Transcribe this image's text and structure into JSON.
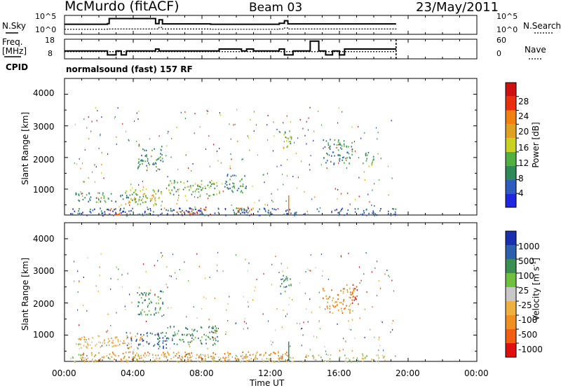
{
  "header": {
    "station": "McMurdo (fitACF)",
    "beam": "Beam 03",
    "date": "23/May/2011"
  },
  "nsky_panel": {
    "left_label": "N.Sky",
    "right_label": "N.Search",
    "left_ticks": [
      "10^5",
      "10^0"
    ],
    "right_ticks": [
      "10^5",
      "10^0"
    ]
  },
  "freq_panel": {
    "left_label_1": "Freq.",
    "left_label_2": "[MHz]",
    "right_label": "Nave",
    "left_ticks": [
      "18",
      "8"
    ],
    "right_ticks": [
      "60",
      "0"
    ]
  },
  "cpid": {
    "label": "CPID",
    "value": "normalsound (fast) 157 RF"
  },
  "colors": {
    "power_scale": [
      "#1f28e0",
      "#2e5cbf",
      "#2f8a5a",
      "#50b040",
      "#c8d020",
      "#e0a020",
      "#f08010",
      "#e83010",
      "#d01010"
    ],
    "velocity_scale": [
      "#e01010",
      "#f06010",
      "#f09020",
      "#f0b040",
      "#c8c8c8",
      "#70c040",
      "#3a9050",
      "#2e60b0",
      "#1a30b0"
    ],
    "ground_scatter": "#b0b0b0"
  },
  "chart_data": [
    {
      "type": "line",
      "title": "N.Sky / N.Search",
      "x": [
        0,
        2.5,
        2.6,
        5.3,
        5.5,
        5.7,
        8.5,
        12.5,
        12.8,
        13.0,
        19.3
      ],
      "series": [
        {
          "name": "N.Sky",
          "values": [
            3.2,
            3.4,
            5.0,
            3.4,
            4.6,
            3.3,
            3.2,
            3.5,
            4.3,
            3.3,
            3.3
          ]
        },
        {
          "name": "N.Search",
          "values": [
            1.6,
            1.7,
            1.7,
            1.7,
            2.2,
            1.7,
            1.6,
            1.7,
            2.0,
            1.7,
            1.6
          ]
        }
      ],
      "xlim": [
        0,
        24
      ]
    },
    {
      "type": "line",
      "title": "Freq. [MHz] / Nave",
      "x": [
        0,
        2.5,
        3.0,
        3.3,
        3.6,
        5.3,
        5.5,
        9.0,
        10.3,
        10.6,
        11.0,
        12.5,
        12.8,
        13.3,
        14.3,
        14.8,
        15.2,
        15.6,
        16.0,
        16.3,
        18.3,
        19.3
      ],
      "series": [
        {
          "name": "Freq. [MHz]",
          "values": [
            12,
            10,
            12,
            10,
            12,
            13,
            12,
            13,
            12,
            13,
            12,
            13,
            10,
            12,
            17,
            12,
            10,
            12,
            10,
            13,
            13,
            13
          ]
        },
        {
          "name": "Nave",
          "values": [
            22,
            22,
            22,
            22,
            22,
            22,
            22,
            22,
            22,
            22,
            22,
            22,
            22,
            22,
            22,
            22,
            22,
            22,
            22,
            22,
            22,
            22
          ]
        }
      ],
      "ylim": [
        8,
        18
      ],
      "xlim": [
        0,
        24
      ]
    },
    {
      "type": "heatmap",
      "title": "Power",
      "xlabel": "Time UT",
      "ylabel": "Slant Range [km]",
      "colorbar_label": "Power [dB]",
      "colorbar_ticks": [
        "4",
        "8",
        "12",
        "16",
        "20",
        "24",
        "28"
      ],
      "x_ticks": [
        "00:00",
        "04:00",
        "08:00",
        "12:00",
        "16:00",
        "20:00",
        "00:00"
      ],
      "y_ticks": [
        "1000",
        "2000",
        "3000",
        "4000"
      ],
      "xlim": [
        0,
        24
      ],
      "ylim": [
        180,
        4500
      ],
      "blobs": [
        {
          "t0": 0.6,
          "t1": 4.8,
          "r0": 600,
          "r1": 900,
          "level": 2
        },
        {
          "t0": 3.5,
          "t1": 6.0,
          "r0": 500,
          "r1": 1000,
          "level": 4
        },
        {
          "t0": 4.2,
          "t1": 5.7,
          "r0": 1600,
          "r1": 2400,
          "level": 2
        },
        {
          "t0": 6.0,
          "t1": 9.0,
          "r0": 750,
          "r1": 1300,
          "level": 3
        },
        {
          "t0": 9.2,
          "t1": 10.6,
          "r0": 900,
          "r1": 1500,
          "level": 2
        },
        {
          "t0": 6.5,
          "t1": 8.5,
          "r0": 200,
          "r1": 450,
          "level": 7
        },
        {
          "t0": 2.3,
          "t1": 4.0,
          "r0": 200,
          "r1": 400,
          "level": 7
        },
        {
          "t0": 10.0,
          "t1": 11.0,
          "r0": 200,
          "r1": 500,
          "level": 6
        },
        {
          "t0": 12.5,
          "t1": 13.2,
          "r0": 2300,
          "r1": 2900,
          "level": 3
        },
        {
          "t0": 15.0,
          "t1": 16.8,
          "r0": 1800,
          "r1": 2600,
          "level": 2
        },
        {
          "t0": 17.3,
          "t1": 18.0,
          "r0": 1700,
          "r1": 2200,
          "level": 3
        },
        {
          "t0": 0.3,
          "t1": 19.3,
          "r0": 180,
          "r1": 420,
          "level": 1
        }
      ]
    },
    {
      "type": "heatmap",
      "title": "Velocity",
      "xlabel": "Time UT",
      "ylabel": "Slant Range [km]",
      "colorbar_label": "Velocity [m s^-1]",
      "colorbar_ticks": [
        "-1000",
        "-500",
        "-100",
        "-25",
        "25",
        "100",
        "500",
        "1000"
      ],
      "x_ticks": [
        "00:00",
        "04:00",
        "08:00",
        "12:00",
        "16:00",
        "20:00",
        "00:00"
      ],
      "y_ticks": [
        "1000",
        "2000",
        "3000",
        "4000"
      ],
      "xlim": [
        0,
        24
      ],
      "ylim": [
        180,
        4500
      ],
      "blobs": [
        {
          "t0": 0.6,
          "t1": 4.8,
          "r0": 600,
          "r1": 1000,
          "level": 3
        },
        {
          "t0": 3.5,
          "t1": 6.0,
          "r0": 600,
          "r1": 1100,
          "level": 7
        },
        {
          "t0": 6.0,
          "t1": 9.0,
          "r0": 700,
          "r1": 1300,
          "level": 6
        },
        {
          "t0": 4.2,
          "t1": 5.7,
          "r0": 1600,
          "r1": 2400,
          "level": 6
        },
        {
          "t0": 1.0,
          "t1": 13.0,
          "r0": 200,
          "r1": 500,
          "level": 2
        },
        {
          "t0": 12.5,
          "t1": 13.2,
          "r0": 2300,
          "r1": 2900,
          "level": 6
        },
        {
          "t0": 15.0,
          "t1": 16.8,
          "r0": 1700,
          "r1": 2500,
          "level": 2
        },
        {
          "t0": 16.7,
          "t1": 17.1,
          "r0": 1800,
          "r1": 2600,
          "level": 0
        },
        {
          "t0": 0.3,
          "t1": 19.3,
          "r0": 180,
          "r1": 420,
          "level": 4
        }
      ]
    }
  ]
}
